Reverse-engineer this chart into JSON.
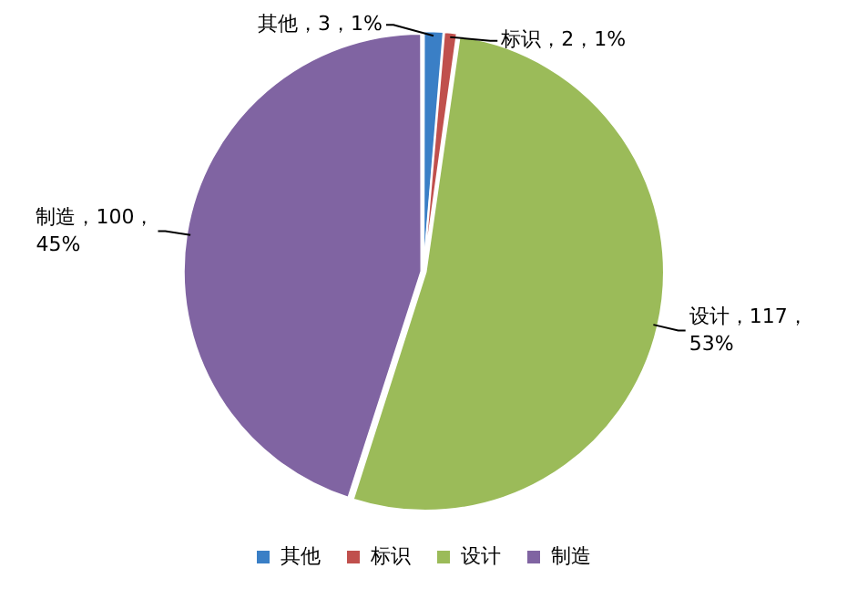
{
  "chart_data": {
    "type": "pie",
    "categories": [
      "其他",
      "标识",
      "设计",
      "制造"
    ],
    "values": [
      3,
      2,
      117,
      100
    ],
    "colors": [
      "#3a7fc6",
      "#c0504d",
      "#9bbb59",
      "#8064a2"
    ],
    "value_labels": [
      "其他，3，1%",
      "标识，2，1%",
      "设计，117，53%",
      "制造，100，45%"
    ],
    "legend": "bottom"
  }
}
